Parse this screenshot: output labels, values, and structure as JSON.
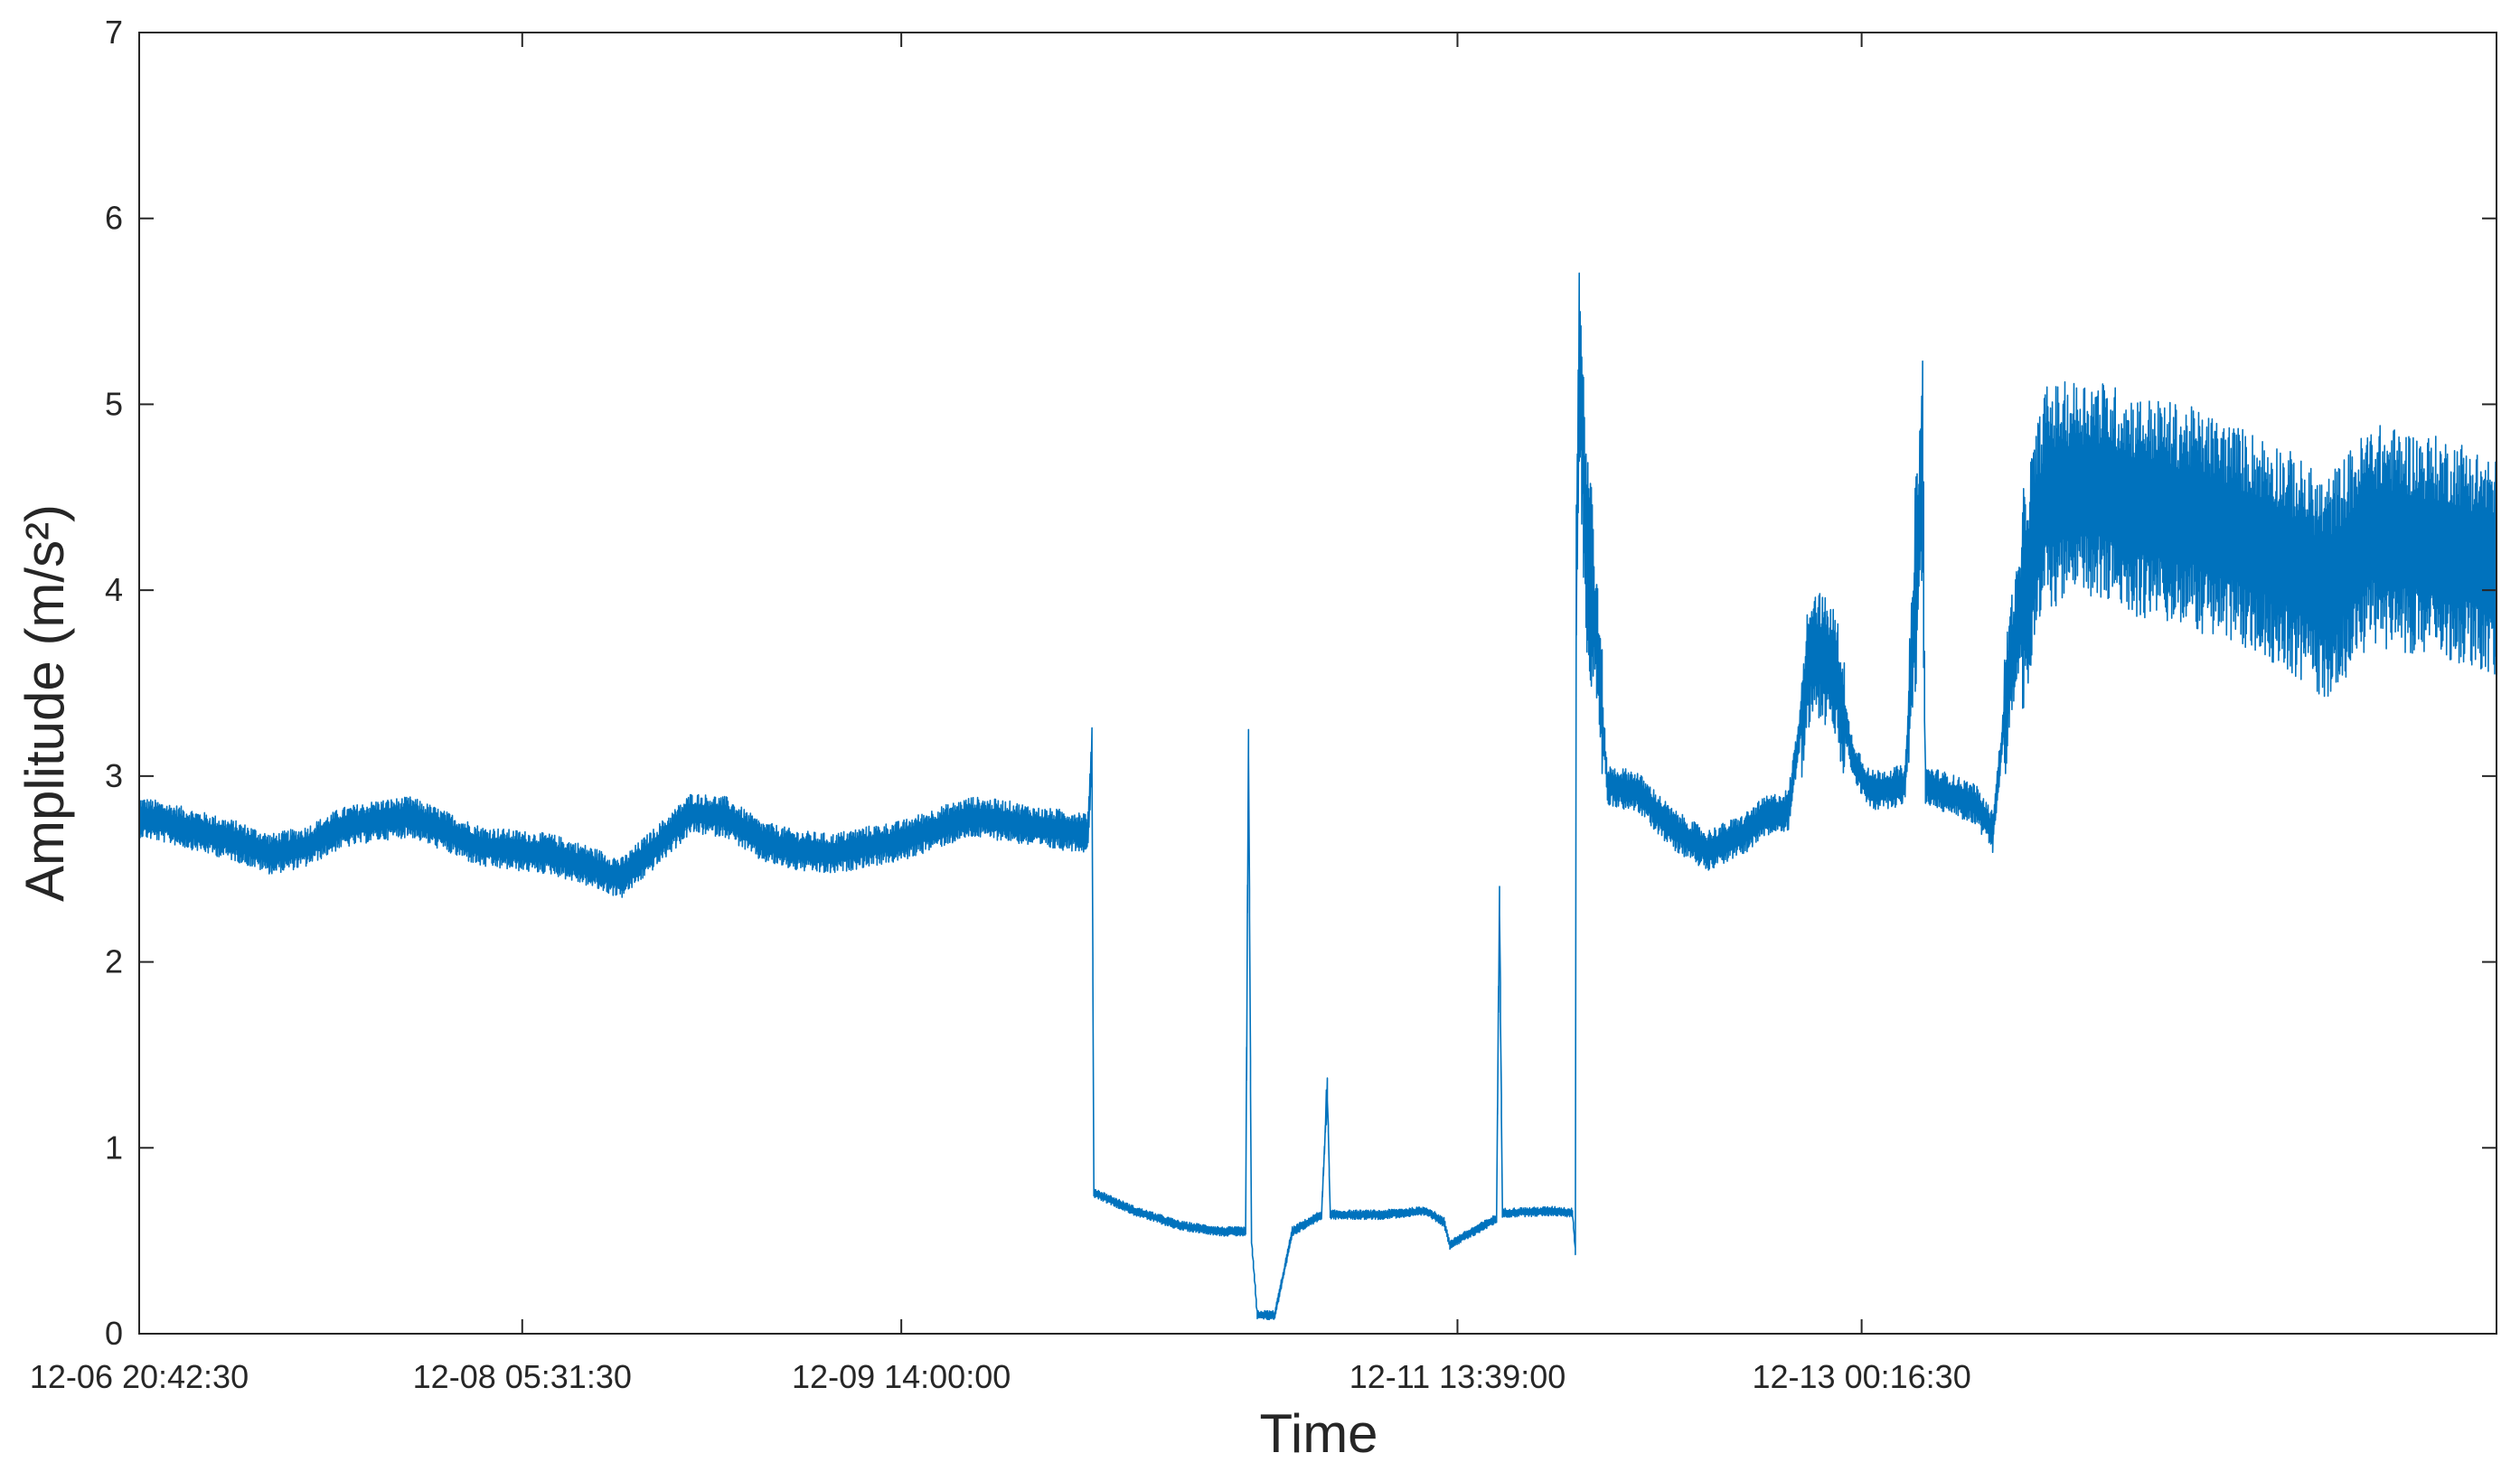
{
  "chart_data": {
    "type": "line",
    "xlabel": "Time",
    "ylabel": "Amplitude (m/s²)",
    "ylim": [
      0,
      7
    ],
    "yticks": [
      "0",
      "1",
      "2",
      "3",
      "4",
      "5",
      "6",
      "7"
    ],
    "xlim": [
      "12-06 20:42:30",
      "12-15 06:40:00"
    ],
    "xticks": [
      {
        "t": "12-06 20:42:30",
        "label": "12-06 20:42:30"
      },
      {
        "t": "12-08 05:31:30",
        "label": "12-08 05:31:30"
      },
      {
        "t": "12-09 14:00:00",
        "label": "12-09 14:00:00"
      },
      {
        "t": "12-11 13:39:00",
        "label": "12-11 13:39:00"
      },
      {
        "t": "12-13 00:16:30",
        "label": "12-13 00:16:30"
      }
    ],
    "grid": false,
    "line_color": "#0072BD",
    "series": [
      {
        "values": [
          [
            "12-06 20:42:30",
            2.78
          ],
          [
            "12-06 23:00:00",
            2.75
          ],
          [
            "12-07 02:00:00",
            2.7
          ],
          [
            "12-07 05:00:00",
            2.65
          ],
          [
            "12-07 08:00:00",
            2.58
          ],
          [
            "12-07 11:00:00",
            2.62
          ],
          [
            "12-07 14:00:00",
            2.72
          ],
          [
            "12-07 17:00:00",
            2.76
          ],
          [
            "12-07 20:00:00",
            2.78
          ],
          [
            "12-07 23:00:00",
            2.7
          ],
          [
            "12-08 02:00:00",
            2.62
          ],
          [
            "12-08 05:00:00",
            2.6
          ],
          [
            "12-08 08:00:00",
            2.58
          ],
          [
            "12-08 11:00:00",
            2.52
          ],
          [
            "12-08 14:00:00",
            2.45
          ],
          [
            "12-08 17:00:00",
            2.62
          ],
          [
            "12-08 20:00:00",
            2.8
          ],
          [
            "12-08 23:00:00",
            2.78
          ],
          [
            "12-09 02:00:00",
            2.65
          ],
          [
            "12-09 05:00:00",
            2.6
          ],
          [
            "12-09 08:00:00",
            2.58
          ],
          [
            "12-09 11:00:00",
            2.62
          ],
          [
            "12-09 14:00:00",
            2.65
          ],
          [
            "12-09 17:00:00",
            2.72
          ],
          [
            "12-09 20:00:00",
            2.78
          ],
          [
            "12-09 23:00:00",
            2.76
          ],
          [
            "12-10 02:00:00",
            2.72
          ],
          [
            "12-10 06:00:00",
            2.7
          ],
          [
            "12-10 06:20:00",
            3.15
          ],
          [
            "12-10 06:30:00",
            0.76
          ],
          [
            "12-10 10:00:00",
            0.66
          ],
          [
            "12-10 14:00:00",
            0.58
          ],
          [
            "12-10 17:30:00",
            0.55
          ],
          [
            "12-10 19:30:00",
            0.55
          ],
          [
            "12-10 19:45:00",
            3.2
          ],
          [
            "12-10 20:00:00",
            0.5
          ],
          [
            "12-10 20:30:00",
            0.1
          ],
          [
            "12-10 22:00:00",
            0.1
          ],
          [
            "12-10 23:30:00",
            0.55
          ],
          [
            "12-11 02:00:00",
            0.64
          ],
          [
            "12-11 02:30:00",
            1.33
          ],
          [
            "12-11 02:45:00",
            0.64
          ],
          [
            "12-11 07:00:00",
            0.64
          ],
          [
            "12-11 11:00:00",
            0.66
          ],
          [
            "12-11 12:30:00",
            0.6
          ],
          [
            "12-11 13:00:00",
            0.48
          ],
          [
            "12-11 15:00:00",
            0.55
          ],
          [
            "12-11 17:00:00",
            0.62
          ],
          [
            "12-11 17:15:00",
            2.36
          ],
          [
            "12-11 17:30:00",
            0.65
          ],
          [
            "12-11 22:00:00",
            0.66
          ],
          [
            "12-11 23:30:00",
            0.65
          ],
          [
            "12-11 23:45:00",
            0.45
          ],
          [
            "12-11 23:50:00",
            4.0
          ],
          [
            "12-12 00:05:00",
            5.25
          ],
          [
            "12-12 00:40:00",
            4.3
          ],
          [
            "12-12 01:30:00",
            3.8
          ],
          [
            "12-12 02:30:00",
            2.95
          ],
          [
            "12-12 05:00:00",
            2.92
          ],
          [
            "12-12 08:00:00",
            2.72
          ],
          [
            "12-12 11:00:00",
            2.6
          ],
          [
            "12-12 14:00:00",
            2.68
          ],
          [
            "12-12 16:00:00",
            2.78
          ],
          [
            "12-12 18:00:00",
            2.82
          ],
          [
            "12-12 20:00:00",
            3.7
          ],
          [
            "12-12 22:00:00",
            3.55
          ],
          [
            "12-12 23:30:00",
            3.1
          ],
          [
            "12-13 01:00:00",
            2.92
          ],
          [
            "12-13 04:00:00",
            2.95
          ],
          [
            "12-13 05:30:00",
            4.68
          ],
          [
            "12-13 05:45:00",
            2.95
          ],
          [
            "12-13 08:00:00",
            2.9
          ],
          [
            "12-13 10:00:00",
            2.85
          ],
          [
            "12-13 11:30:00",
            2.7
          ],
          [
            "12-13 13:00:00",
            3.6
          ],
          [
            "12-13 16:00:00",
            4.5
          ],
          [
            "12-13 20:00:00",
            4.55
          ],
          [
            "12-14 00:00:00",
            4.45
          ],
          [
            "12-14 04:00:00",
            4.4
          ],
          [
            "12-14 08:00:00",
            4.3
          ],
          [
            "12-14 12:00:00",
            4.2
          ],
          [
            "12-14 16:00:00",
            4.0
          ],
          [
            "12-14 20:00:00",
            4.3
          ],
          [
            "12-15 00:00:00",
            4.25
          ],
          [
            "12-15 04:00:00",
            4.2
          ],
          [
            "12-15 06:40:00",
            4.1
          ]
        ]
      }
    ]
  }
}
